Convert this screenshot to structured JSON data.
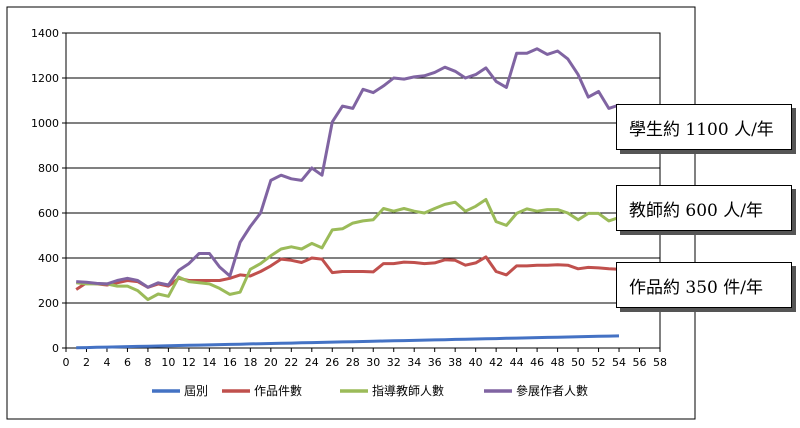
{
  "chart_data": {
    "type": "line",
    "xlim": [
      0,
      58
    ],
    "ylim": [
      0,
      1400
    ],
    "x_ticks": [
      0,
      2,
      4,
      6,
      8,
      10,
      12,
      14,
      16,
      18,
      20,
      22,
      24,
      26,
      28,
      30,
      32,
      34,
      36,
      38,
      40,
      42,
      44,
      46,
      48,
      50,
      52,
      54,
      56,
      58
    ],
    "y_ticks": [
      0,
      200,
      400,
      600,
      800,
      1000,
      1200,
      1400
    ],
    "x_tick_labels": [
      "0",
      "2",
      "4",
      "6",
      "8",
      "10",
      "12",
      "14",
      "16",
      "18",
      "20",
      "22",
      "24",
      "26",
      "28",
      "30",
      "32",
      "34",
      "36",
      "38",
      "40",
      "42",
      "44",
      "46",
      "48",
      "50",
      "52",
      "54",
      "56",
      "58"
    ],
    "y_tick_labels": [
      "0",
      "200",
      "400",
      "600",
      "800",
      "1000",
      "1200",
      "1400"
    ],
    "x": [
      1,
      2,
      3,
      4,
      5,
      6,
      7,
      8,
      9,
      10,
      11,
      12,
      13,
      14,
      15,
      16,
      17,
      18,
      19,
      20,
      21,
      22,
      23,
      24,
      25,
      26,
      27,
      28,
      29,
      30,
      31,
      32,
      33,
      34,
      35,
      36,
      37,
      38,
      39,
      40,
      41,
      42,
      43,
      44,
      45,
      46,
      47,
      48,
      49,
      50,
      51,
      52,
      53,
      54
    ],
    "series": [
      {
        "name": "屆別",
        "color": "#4472C4",
        "values": [
          1,
          2,
          3,
          4,
          5,
          6,
          7,
          8,
          9,
          10,
          11,
          12,
          13,
          14,
          15,
          16,
          17,
          18,
          19,
          20,
          21,
          22,
          23,
          24,
          25,
          26,
          27,
          28,
          29,
          30,
          31,
          32,
          33,
          34,
          35,
          36,
          37,
          38,
          39,
          40,
          41,
          42,
          43,
          44,
          45,
          46,
          47,
          48,
          49,
          50,
          51,
          52,
          53,
          54
        ]
      },
      {
        "name": "作品件數",
        "color": "#C0504D",
        "values": [
          260,
          290,
          285,
          280,
          290,
          300,
          295,
          270,
          285,
          275,
          310,
          300,
          300,
          300,
          300,
          310,
          325,
          320,
          340,
          365,
          395,
          390,
          380,
          400,
          395,
          335,
          340,
          340,
          340,
          338,
          375,
          375,
          382,
          380,
          375,
          378,
          392,
          390,
          368,
          378,
          405,
          340,
          325,
          365,
          365,
          368,
          368,
          370,
          368,
          352,
          358,
          356,
          352,
          350
        ]
      },
      {
        "name": "指導教師人數",
        "color": "#9BBB59",
        "values": [
          290,
          285,
          285,
          285,
          275,
          275,
          255,
          215,
          240,
          230,
          315,
          295,
          290,
          285,
          265,
          238,
          248,
          350,
          375,
          410,
          440,
          450,
          440,
          465,
          445,
          525,
          530,
          555,
          565,
          570,
          620,
          608,
          620,
          608,
          600,
          620,
          638,
          648,
          608,
          630,
          660,
          562,
          545,
          598,
          618,
          608,
          615,
          615,
          600,
          570,
          598,
          598,
          565,
          580
        ]
      },
      {
        "name": "參展作者人數",
        "color": "#8064A2",
        "values": [
          295,
          292,
          287,
          285,
          300,
          310,
          300,
          270,
          290,
          280,
          345,
          375,
          420,
          420,
          360,
          320,
          470,
          540,
          600,
          745,
          768,
          752,
          745,
          800,
          768,
          1005,
          1075,
          1065,
          1150,
          1135,
          1165,
          1200,
          1195,
          1205,
          1210,
          1225,
          1248,
          1230,
          1200,
          1215,
          1245,
          1185,
          1158,
          1310,
          1310,
          1330,
          1305,
          1320,
          1285,
          1215,
          1115,
          1140,
          1065,
          1080
        ]
      }
    ]
  },
  "callouts": [
    {
      "text": "學生約 1100 人/年"
    },
    {
      "text": "教師約 600 人/年"
    },
    {
      "text": "作品約 350 件/年"
    }
  ]
}
